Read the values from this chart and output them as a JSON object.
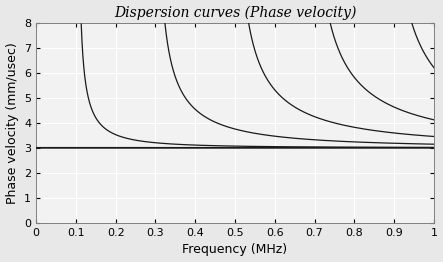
{
  "title": "Dispersion curves (Phase velocity)",
  "xlabel": "Frequency (MHz)",
  "ylabel": "Phase velocity (mm/usec)",
  "xlim": [
    0,
    1.0
  ],
  "ylim": [
    0,
    8
  ],
  "yticks": [
    0,
    1,
    2,
    3,
    4,
    5,
    6,
    7,
    8
  ],
  "xticks": [
    0,
    0.1,
    0.2,
    0.3,
    0.4,
    0.5,
    0.6,
    0.7,
    0.8,
    0.9,
    1.0
  ],
  "ct": 3.0,
  "cutoff_freqs": [
    0.105,
    0.3,
    0.495,
    0.685,
    0.875
  ],
  "background_color": "#f2f2f2",
  "line_color": "#1a1a1a",
  "grid_color": "#ffffff",
  "spine_color": "#808080",
  "figsize": [
    4.43,
    2.62
  ],
  "dpi": 100,
  "title_fontsize": 10,
  "label_fontsize": 9,
  "tick_fontsize": 8
}
